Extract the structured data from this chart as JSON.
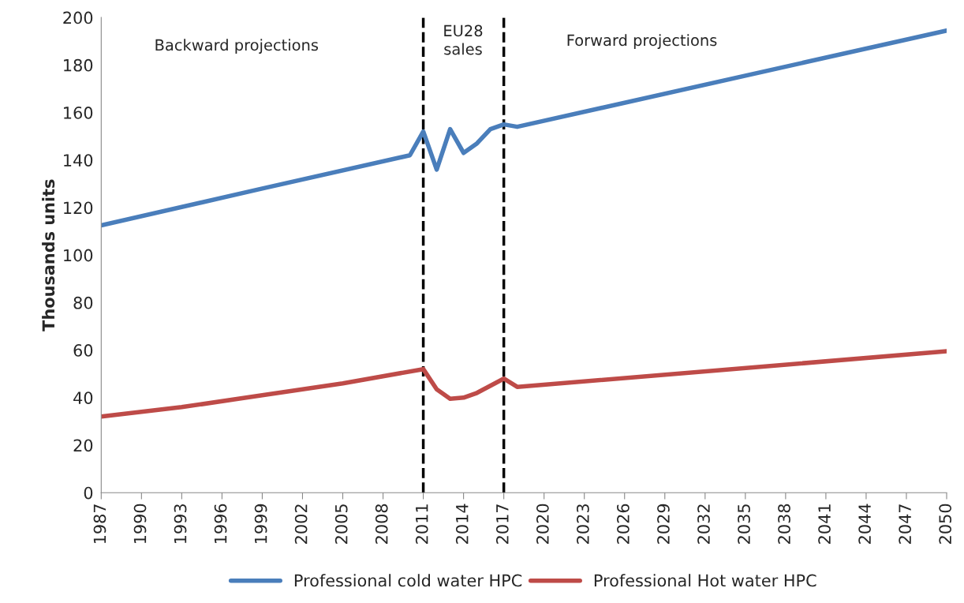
{
  "chart_data": {
    "type": "line",
    "ylabel": "Thousands units",
    "xlim": [
      1987,
      2050
    ],
    "xticks": [
      1987,
      1990,
      1993,
      1996,
      1999,
      2002,
      2005,
      2008,
      2011,
      2014,
      2017,
      2020,
      2023,
      2026,
      2029,
      2032,
      2035,
      2038,
      2041,
      2044,
      2047,
      2050
    ],
    "ylim": [
      0,
      200
    ],
    "yticks": [
      0,
      20,
      40,
      60,
      80,
      100,
      120,
      140,
      160,
      180,
      200
    ],
    "grid": false,
    "legend": "bottom",
    "line_style": "solid",
    "marker": "none",
    "series": [
      {
        "name": "Professional cold water HPC",
        "color": "#4a7ebb",
        "x": [
          1987,
          1999,
          2010,
          2011,
          2012,
          2013,
          2014,
          2015,
          2016,
          2017,
          2018,
          2050
        ],
        "values": [
          112.5,
          128,
          142,
          152,
          136,
          153,
          143,
          147,
          153,
          155,
          154,
          194.5
        ]
      },
      {
        "name": "Professional Hot water HPC",
        "color": "#be4b48",
        "x": [
          1987,
          1993,
          1999,
          2005,
          2011,
          2012,
          2013,
          2014,
          2015,
          2016,
          2017,
          2018,
          2050
        ],
        "values": [
          32,
          36,
          41,
          46,
          52,
          43.5,
          39.5,
          40,
          42,
          45,
          48,
          44.5,
          59.5
        ]
      }
    ],
    "ref_lines": [
      {
        "axis": "x",
        "value": 2011,
        "color": "#000000",
        "line_style": "dashed"
      },
      {
        "axis": "x",
        "value": 2017,
        "color": "#000000",
        "line_style": "dashed"
      }
    ],
    "annotations": [
      "Backward projections",
      "EU28\nsales",
      "Forward projections"
    ]
  }
}
